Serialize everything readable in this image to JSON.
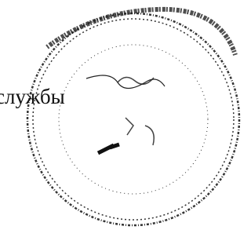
{
  "text": "службы"
}
